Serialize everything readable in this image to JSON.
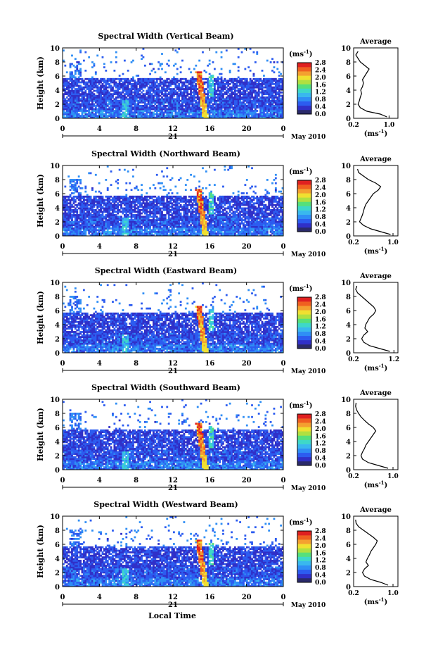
{
  "figure": {
    "xlabel": "Local Time",
    "date_label": "May 2010",
    "day_label": "21",
    "x_ticks": [
      "0",
      "4",
      "8",
      "12",
      "16",
      "20",
      "0"
    ],
    "y_ticks": [
      "0",
      "2",
      "4",
      "6",
      "8",
      "10"
    ],
    "ylabel": "Height (km)",
    "colorbar_unit": "(ms",
    "colorbar_unit_exp": "-1",
    "colorbar_unit_close": ")",
    "colorbar_ticks": [
      "0.0",
      "0.4",
      "0.8",
      "1.2",
      "1.6",
      "2.0",
      "2.4",
      "2.8"
    ],
    "avg_title": "Average",
    "avg_xlabel": "(ms",
    "avg_xlabel_exp": "-1",
    "avg_xlabel_close": ")",
    "colors": {
      "colormap": [
        "#2a2a6a",
        "#3030c8",
        "#2c5cf0",
        "#2f8ef5",
        "#39b8ee",
        "#3ed8c8",
        "#56e07a",
        "#b0e040",
        "#f0e030",
        "#f4a030",
        "#f06020",
        "#e02020"
      ],
      "background": "#ffffff"
    }
  },
  "chart_data": [
    {
      "type": "heatmap",
      "title": "Spectral Width (Vertical Beam)",
      "xlabel": "Local Time",
      "ylabel": "Height (km)",
      "xlim": [
        0,
        24
      ],
      "ylim": [
        0,
        10
      ],
      "color_range": [
        0.0,
        2.8
      ],
      "avg_profile": {
        "xlim": [
          0.2,
          1.2
        ],
        "x_ticks": [
          "0.2",
          "1.0"
        ],
        "heights": [
          0.2,
          0.6,
          1.0,
          1.5,
          2.0,
          2.5,
          3.0,
          3.5,
          4.0,
          4.5,
          5.0,
          5.5,
          6.0,
          6.5,
          7.0,
          7.5,
          8.0,
          8.5,
          9.0,
          9.5
        ],
        "values": [
          0.95,
          0.8,
          0.5,
          0.35,
          0.3,
          0.33,
          0.35,
          0.38,
          0.36,
          0.4,
          0.42,
          0.4,
          0.45,
          0.5,
          0.55,
          0.45,
          0.35,
          0.3,
          0.25,
          0.3
        ]
      }
    },
    {
      "type": "heatmap",
      "title": "Spectral Width (Northward Beam)",
      "xlabel": "Local Time",
      "ylabel": "Height (km)",
      "xlim": [
        0,
        24
      ],
      "ylim": [
        0,
        10
      ],
      "color_range": [
        0.0,
        2.8
      ],
      "avg_profile": {
        "xlim": [
          0.2,
          1.1
        ],
        "x_ticks": [
          "0.2",
          "1.0"
        ],
        "heights": [
          0.2,
          0.6,
          1.0,
          1.5,
          2.0,
          2.5,
          3.0,
          3.5,
          4.0,
          4.5,
          5.0,
          5.5,
          6.0,
          6.5,
          7.0,
          7.5,
          8.0,
          8.5,
          9.0,
          9.5
        ],
        "values": [
          0.95,
          0.75,
          0.55,
          0.4,
          0.32,
          0.35,
          0.38,
          0.4,
          0.42,
          0.45,
          0.5,
          0.55,
          0.6,
          0.7,
          0.75,
          0.65,
          0.5,
          0.4,
          0.3,
          0.28
        ]
      }
    },
    {
      "type": "heatmap",
      "title": "Spectral Width (Eastward Beam)",
      "xlabel": "Local Time",
      "ylabel": "Height (km)",
      "xlim": [
        0,
        24
      ],
      "ylim": [
        0,
        10
      ],
      "color_range": [
        0.0,
        2.8
      ],
      "avg_profile": {
        "xlim": [
          0.2,
          1.3
        ],
        "x_ticks": [
          "0.2",
          "1.2"
        ],
        "heights": [
          0.2,
          0.6,
          1.0,
          1.5,
          2.0,
          2.5,
          3.0,
          3.5,
          4.0,
          4.5,
          5.0,
          5.5,
          6.0,
          6.5,
          7.0,
          7.5,
          8.0,
          8.5,
          9.0,
          9.5
        ],
        "values": [
          1.1,
          0.85,
          0.6,
          0.45,
          0.4,
          0.45,
          0.55,
          0.48,
          0.5,
          0.55,
          0.6,
          0.7,
          0.75,
          0.7,
          0.6,
          0.5,
          0.4,
          0.3,
          0.25,
          0.28
        ]
      }
    },
    {
      "type": "heatmap",
      "title": "Spectral Width (Southward Beam)",
      "xlabel": "Local Time",
      "ylabel": "Height (km)",
      "xlim": [
        0,
        24
      ],
      "ylim": [
        0,
        10
      ],
      "color_range": [
        0.0,
        2.8
      ],
      "avg_profile": {
        "xlim": [
          0.2,
          1.1
        ],
        "x_ticks": [
          "0.2",
          "1.0"
        ],
        "heights": [
          0.2,
          0.6,
          1.0,
          1.5,
          2.0,
          2.5,
          3.0,
          3.5,
          4.0,
          4.5,
          5.0,
          5.5,
          6.0,
          6.5,
          7.0,
          7.5,
          8.0,
          8.5,
          9.0,
          9.5
        ],
        "values": [
          0.9,
          0.7,
          0.5,
          0.38,
          0.35,
          0.38,
          0.42,
          0.45,
          0.5,
          0.55,
          0.6,
          0.65,
          0.6,
          0.5,
          0.42,
          0.35,
          0.3,
          0.26,
          0.24,
          0.25
        ]
      }
    },
    {
      "type": "heatmap",
      "title": "Spectral Width (Westward Beam)",
      "xlabel": "Local Time",
      "ylabel": "Height (km)",
      "xlim": [
        0,
        24
      ],
      "ylim": [
        0,
        10
      ],
      "color_range": [
        0.0,
        2.8
      ],
      "avg_profile": {
        "xlim": [
          0.2,
          1.1
        ],
        "x_ticks": [
          "0.2",
          "1.0"
        ],
        "heights": [
          0.2,
          0.6,
          1.0,
          1.5,
          2.0,
          2.5,
          3.0,
          3.5,
          4.0,
          4.5,
          5.0,
          5.5,
          6.0,
          6.5,
          7.0,
          7.5,
          8.0,
          8.5,
          9.0,
          9.5
        ],
        "values": [
          0.9,
          0.75,
          0.55,
          0.42,
          0.38,
          0.42,
          0.5,
          0.45,
          0.48,
          0.52,
          0.55,
          0.6,
          0.65,
          0.68,
          0.6,
          0.5,
          0.4,
          0.3,
          0.25,
          0.24
        ]
      }
    }
  ]
}
